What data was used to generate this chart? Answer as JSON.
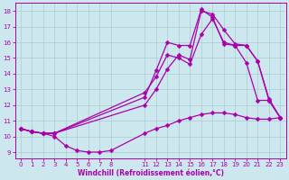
{
  "title": "",
  "xlabel": "Windchill (Refroidissement éolien,°C)",
  "ylabel": "",
  "bg_color": "#cce8ee",
  "line_color": "#aa00aa",
  "grid_color": "#aaccd0",
  "xlim": [
    -0.5,
    23.5
  ],
  "ylim": [
    8.6,
    18.5
  ],
  "x_ticks": [
    0,
    1,
    2,
    3,
    4,
    5,
    6,
    7,
    8,
    11,
    12,
    13,
    14,
    15,
    16,
    17,
    18,
    19,
    20,
    21,
    22,
    23
  ],
  "y_ticks": [
    9,
    10,
    11,
    12,
    13,
    14,
    15,
    16,
    17,
    18
  ],
  "line1_x": [
    0,
    1,
    2,
    3,
    4,
    5,
    6,
    7,
    8,
    11,
    12,
    13,
    14,
    15,
    16,
    17,
    18,
    19,
    20,
    21,
    22,
    23
  ],
  "line1_y": [
    10.5,
    10.3,
    10.2,
    10.0,
    9.4,
    9.1,
    9.0,
    9.0,
    9.1,
    10.2,
    10.5,
    10.7,
    11.0,
    11.2,
    11.4,
    11.5,
    11.5,
    11.4,
    11.2,
    11.1,
    11.1,
    11.2
  ],
  "line2_x": [
    0,
    1,
    2,
    3,
    11,
    12,
    13,
    14,
    15,
    16,
    17,
    18,
    19,
    20,
    21,
    22,
    23
  ],
  "line2_y": [
    10.5,
    10.3,
    10.2,
    10.2,
    12.8,
    13.8,
    15.2,
    15.0,
    14.6,
    16.5,
    17.5,
    16.0,
    15.8,
    15.8,
    14.8,
    12.4,
    11.2
  ],
  "line3_x": [
    0,
    1,
    2,
    3,
    11,
    12,
    13,
    14,
    15,
    16,
    17,
    18,
    19,
    20,
    21,
    22,
    23
  ],
  "line3_y": [
    10.5,
    10.3,
    10.2,
    10.2,
    12.0,
    13.0,
    14.3,
    15.2,
    14.9,
    18.0,
    17.8,
    16.8,
    15.9,
    15.8,
    14.8,
    12.3,
    11.2
  ],
  "line4_x": [
    0,
    1,
    2,
    3,
    11,
    12,
    13,
    14,
    15,
    16,
    17,
    18,
    19,
    20,
    21,
    22,
    23
  ],
  "line4_y": [
    10.5,
    10.3,
    10.2,
    10.2,
    12.5,
    14.2,
    16.0,
    15.8,
    15.8,
    18.1,
    17.6,
    15.9,
    15.8,
    14.7,
    12.3,
    12.3,
    11.2
  ],
  "marker": "D",
  "markersize": 2.5,
  "linewidth": 0.9
}
